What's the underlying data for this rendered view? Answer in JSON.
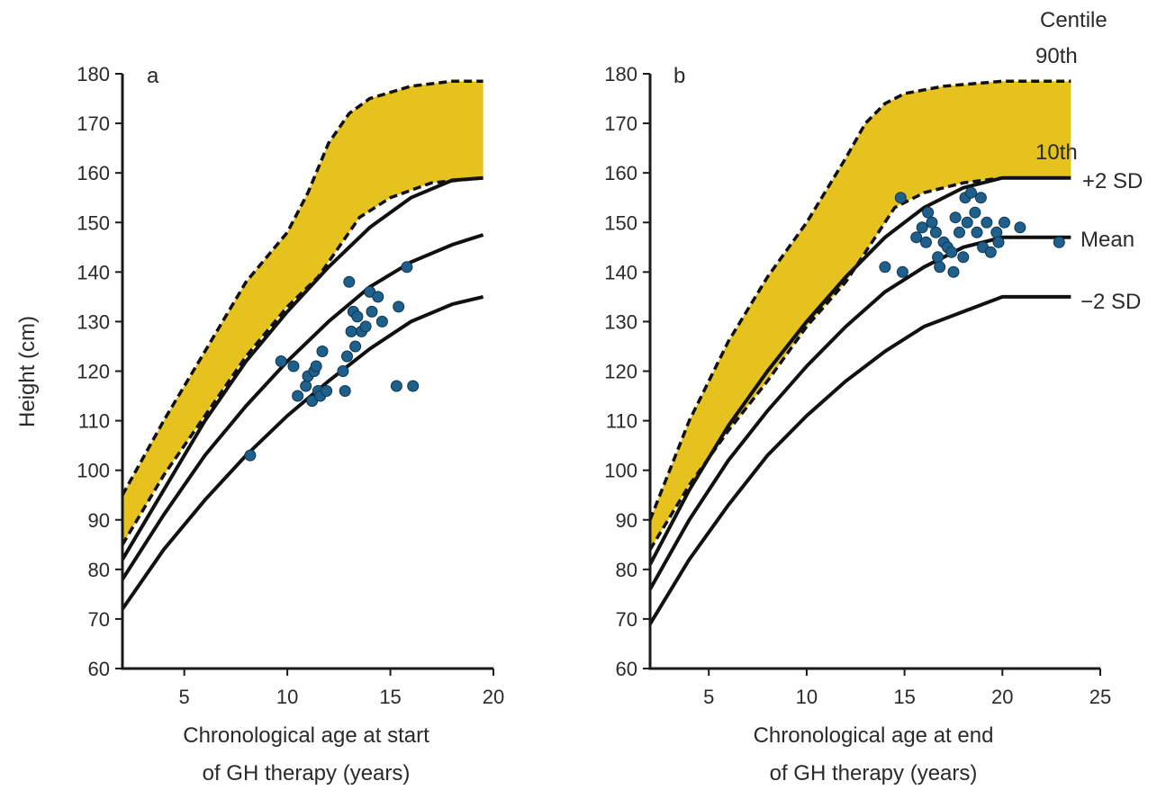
{
  "colors": {
    "band": "#e6c21f",
    "point": "#1f5f8b",
    "line": "#111111"
  },
  "y_axis_title": "Height (cm)",
  "centile_heading": "Centile",
  "chart_data": [
    {
      "type": "scatter",
      "panel_label": "a",
      "xlabel_lines": [
        "Chronological age at start",
        "of GH therapy (years)"
      ],
      "ylabel": "Height (cm)",
      "xlim": [
        2,
        20
      ],
      "ylim": [
        60,
        180
      ],
      "xticks": [
        5,
        10,
        15,
        20
      ],
      "yticks": [
        60,
        70,
        80,
        90,
        100,
        110,
        120,
        130,
        140,
        150,
        160,
        170,
        180
      ],
      "centile_band": {
        "upper_90th": [
          [
            2,
            95
          ],
          [
            4,
            110
          ],
          [
            6,
            124
          ],
          [
            8,
            138
          ],
          [
            10,
            148
          ],
          [
            11,
            156
          ],
          [
            12,
            166
          ],
          [
            13,
            172
          ],
          [
            14,
            175
          ],
          [
            16,
            177.5
          ],
          [
            18,
            178.5
          ],
          [
            19.5,
            178.5
          ]
        ],
        "lower_10th": [
          [
            2,
            85
          ],
          [
            4,
            99
          ],
          [
            6,
            111
          ],
          [
            8,
            123
          ],
          [
            10,
            133
          ],
          [
            11.5,
            139
          ],
          [
            12.5,
            145
          ],
          [
            13.5,
            151
          ],
          [
            15,
            155
          ],
          [
            17,
            158
          ],
          [
            19.5,
            159
          ]
        ]
      },
      "reference_lines": [
        {
          "name": "+2 SD",
          "points": [
            [
              2,
              82
            ],
            [
              4,
              96
            ],
            [
              6,
              110
            ],
            [
              8,
              122
            ],
            [
              10,
              132
            ],
            [
              12,
              141
            ],
            [
              14,
              149
            ],
            [
              16,
              155
            ],
            [
              18,
              158.5
            ],
            [
              19.5,
              159
            ]
          ]
        },
        {
          "name": "Mean",
          "points": [
            [
              2,
              78
            ],
            [
              4,
              91
            ],
            [
              6,
              103
            ],
            [
              8,
              113
            ],
            [
              10,
              122
            ],
            [
              12,
              130
            ],
            [
              14,
              137
            ],
            [
              16,
              142
            ],
            [
              18,
              145.5
            ],
            [
              19.5,
              147.5
            ]
          ]
        },
        {
          "name": "-2 SD",
          "points": [
            [
              2,
              72
            ],
            [
              4,
              84
            ],
            [
              6,
              94
            ],
            [
              8,
              103
            ],
            [
              10,
              111
            ],
            [
              12,
              118
            ],
            [
              14,
              124.5
            ],
            [
              16,
              130
            ],
            [
              18,
              133.5
            ],
            [
              19.5,
              135
            ]
          ]
        }
      ],
      "points": [
        [
          8.2,
          103
        ],
        [
          9.7,
          122
        ],
        [
          10.3,
          121
        ],
        [
          10.5,
          115
        ],
        [
          10.9,
          117
        ],
        [
          11.0,
          119
        ],
        [
          11.2,
          114
        ],
        [
          11.3,
          120
        ],
        [
          11.4,
          121
        ],
        [
          11.5,
          116
        ],
        [
          11.6,
          115
        ],
        [
          11.7,
          124
        ],
        [
          11.9,
          116
        ],
        [
          12.7,
          120
        ],
        [
          12.8,
          116
        ],
        [
          12.9,
          123
        ],
        [
          13.0,
          138
        ],
        [
          13.1,
          128
        ],
        [
          13.2,
          132
        ],
        [
          13.3,
          125
        ],
        [
          13.4,
          131
        ],
        [
          13.6,
          128
        ],
        [
          13.8,
          129
        ],
        [
          14.0,
          136
        ],
        [
          14.1,
          132
        ],
        [
          14.4,
          135
        ],
        [
          14.6,
          130
        ],
        [
          15.3,
          117
        ],
        [
          15.4,
          133
        ],
        [
          15.8,
          141
        ],
        [
          16.1,
          117
        ]
      ]
    },
    {
      "type": "scatter",
      "panel_label": "b",
      "xlabel_lines": [
        "Chronological age at end",
        "of GH therapy (years)"
      ],
      "ylabel": "Height (cm)",
      "xlim": [
        2,
        25
      ],
      "ylim": [
        60,
        180
      ],
      "xticks": [
        5,
        10,
        15,
        20,
        25
      ],
      "yticks": [
        60,
        70,
        80,
        90,
        100,
        110,
        120,
        130,
        140,
        150,
        160,
        170,
        180
      ],
      "centile_band": {
        "upper_90th": [
          [
            2,
            90
          ],
          [
            4,
            110
          ],
          [
            6,
            126
          ],
          [
            8,
            139
          ],
          [
            10,
            150
          ],
          [
            12,
            163
          ],
          [
            13,
            170
          ],
          [
            14,
            174
          ],
          [
            15,
            176
          ],
          [
            17,
            177.5
          ],
          [
            20,
            178.5
          ],
          [
            23.5,
            178.5
          ]
        ],
        "lower_10th": [
          [
            2,
            84
          ],
          [
            4,
            97
          ],
          [
            6,
            108
          ],
          [
            8,
            118
          ],
          [
            10,
            129
          ],
          [
            12,
            138
          ],
          [
            13.5,
            147
          ],
          [
            14.5,
            153
          ],
          [
            16,
            156
          ],
          [
            18,
            158
          ],
          [
            20,
            159
          ],
          [
            23.5,
            159
          ]
        ]
      },
      "reference_lines": [
        {
          "name": "+2 SD",
          "points": [
            [
              2,
              81
            ],
            [
              4,
              96
            ],
            [
              6,
              109
            ],
            [
              8,
              120
            ],
            [
              10,
              130
            ],
            [
              12,
              139
            ],
            [
              14,
              147
            ],
            [
              16,
              153
            ],
            [
              18,
              157
            ],
            [
              20,
              159
            ],
            [
              23.5,
              159
            ]
          ]
        },
        {
          "name": "Mean",
          "points": [
            [
              2,
              76
            ],
            [
              4,
              90
            ],
            [
              6,
              102
            ],
            [
              8,
              112
            ],
            [
              10,
              121
            ],
            [
              12,
              129
            ],
            [
              14,
              136
            ],
            [
              16,
              141
            ],
            [
              18,
              145
            ],
            [
              20,
              147
            ],
            [
              23.5,
              147
            ]
          ]
        },
        {
          "name": "-2 SD",
          "points": [
            [
              2,
              69
            ],
            [
              4,
              82
            ],
            [
              6,
              93
            ],
            [
              8,
              103
            ],
            [
              10,
              111
            ],
            [
              12,
              118
            ],
            [
              14,
              124
            ],
            [
              16,
              129
            ],
            [
              18,
              132
            ],
            [
              20,
              135
            ],
            [
              23.5,
              135
            ]
          ]
        }
      ],
      "points": [
        [
          14.0,
          141
        ],
        [
          14.8,
          155
        ],
        [
          14.9,
          140
        ],
        [
          15.6,
          147
        ],
        [
          15.9,
          149
        ],
        [
          16.1,
          146
        ],
        [
          16.2,
          152
        ],
        [
          16.4,
          150
        ],
        [
          16.6,
          148
        ],
        [
          16.7,
          143
        ],
        [
          16.8,
          141
        ],
        [
          17.0,
          146
        ],
        [
          17.2,
          145
        ],
        [
          17.4,
          144
        ],
        [
          17.5,
          140
        ],
        [
          17.6,
          151
        ],
        [
          17.8,
          148
        ],
        [
          18.0,
          143
        ],
        [
          18.1,
          155
        ],
        [
          18.2,
          150
        ],
        [
          18.4,
          156
        ],
        [
          18.6,
          152
        ],
        [
          18.7,
          148
        ],
        [
          18.9,
          155
        ],
        [
          19.0,
          145
        ],
        [
          19.2,
          150
        ],
        [
          19.4,
          144
        ],
        [
          19.7,
          148
        ],
        [
          19.8,
          146
        ],
        [
          20.1,
          150
        ],
        [
          20.9,
          149
        ],
        [
          22.9,
          146
        ]
      ],
      "side_labels": {
        "centile_90th": "90th",
        "centile_10th": "10th",
        "plus_2sd": "+2 SD",
        "mean": "Mean",
        "minus_2sd": "−2 SD"
      }
    }
  ]
}
